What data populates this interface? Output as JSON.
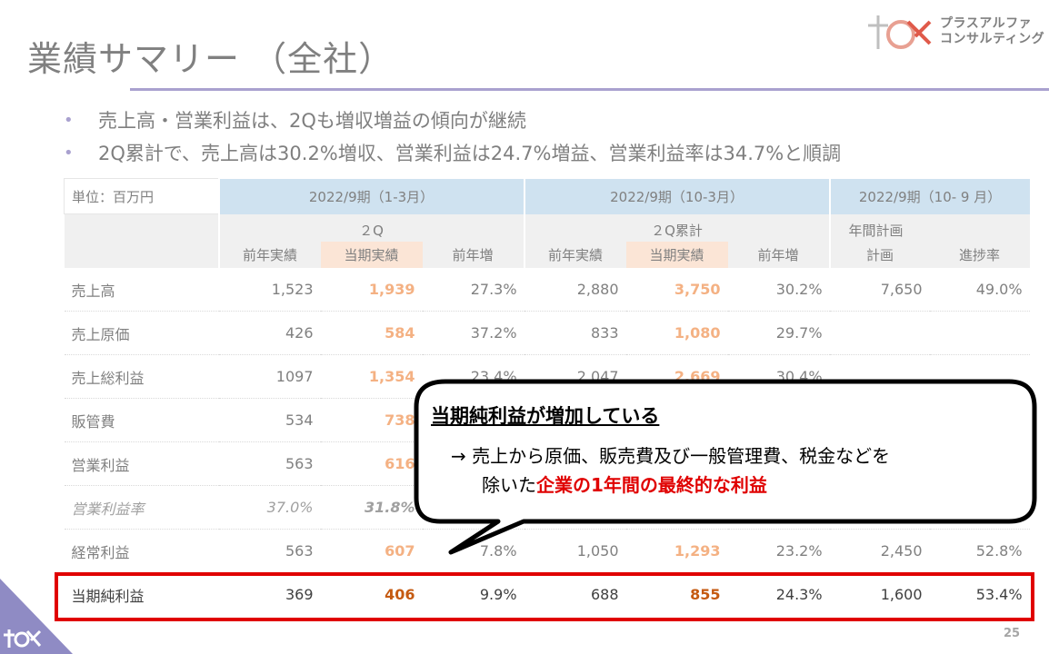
{
  "slide": {
    "title": "業績サマリー （全社）",
    "page_number": "25",
    "accent_color": "#a9a1cf",
    "highlight_color": "#e00000"
  },
  "logo": {
    "line1": "プラスアルファ",
    "line2": "コンサルティング"
  },
  "bullets": [
    "売上高・営業利益は、2Qも増収増益の傾向が継続",
    "2Q累計で、売上高は30.2%増収、営業利益は24.7%増益、営業利益率は34.7%と順調"
  ],
  "table": {
    "unit": "単位：百万円",
    "groups": [
      "2022/9期（1-3月）",
      "2022/9期（10-3月）",
      "2022/9期（10- 9 月）"
    ],
    "subgroups": [
      "２Q",
      "２Q累計",
      "年間計画"
    ],
    "columns": [
      "前年実績",
      "当期実績",
      "前年増",
      "前年実績",
      "当期実績",
      "前年増",
      "計画",
      "進捗率"
    ],
    "rows": [
      {
        "label": "売上高",
        "values": [
          "1,523",
          "1,939",
          "27.3%",
          "2,880",
          "3,750",
          "30.2%",
          "7,650",
          "49.0%"
        ]
      },
      {
        "label": "売上原価",
        "values": [
          "426",
          "584",
          "37.2%",
          "833",
          "1,080",
          "29.7%",
          "",
          ""
        ]
      },
      {
        "label": "売上総利益",
        "values": [
          "1097",
          "1,354",
          "23.4%",
          "2,047",
          "2,669",
          "30.4%",
          "",
          ""
        ]
      },
      {
        "label": "販管費",
        "values": [
          "534",
          "738",
          "",
          "",
          "",
          "",
          "",
          ""
        ]
      },
      {
        "label": "営業利益",
        "values": [
          "563",
          "616",
          "",
          "",
          "",
          "",
          "",
          "%"
        ]
      },
      {
        "label": "営業利益率",
        "values": [
          "37.0%",
          "31.8%",
          "",
          "",
          "",
          "",
          "",
          ""
        ]
      },
      {
        "label": "経常利益",
        "values": [
          "563",
          "607",
          "7.8%",
          "1,050",
          "1,293",
          "23.2%",
          "2,450",
          "52.8%"
        ]
      },
      {
        "label": "当期純利益",
        "values": [
          "369",
          "406",
          "9.9%",
          "688",
          "855",
          "24.3%",
          "1,600",
          "53.4%"
        ]
      }
    ]
  },
  "callout": {
    "title": "当期純利益が増加している",
    "line1": "→ 売上から原価、販売費及び一般管理費、税金などを",
    "line2_prefix": "除いた",
    "line2_emphasis": "企業の1年間の最終的な利益"
  }
}
